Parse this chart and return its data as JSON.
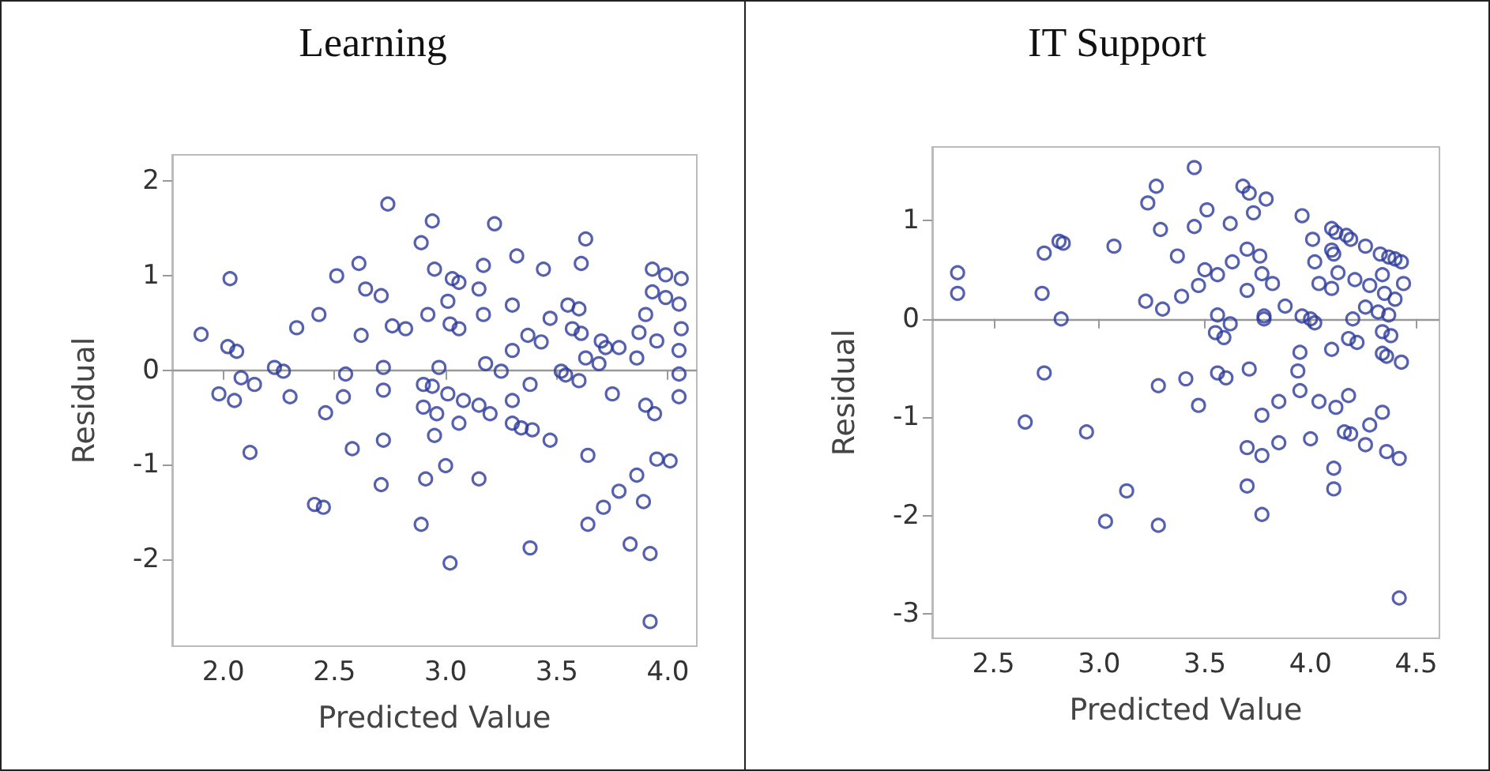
{
  "chart_data": [
    {
      "type": "scatter",
      "title": "Learning",
      "xlabel": "Predicted Value",
      "ylabel": "Residual",
      "marker": "circle",
      "grid": false,
      "xlim": [
        1.77,
        4.13
      ],
      "xticks": [
        {
          "value": 2,
          "label": "2.0"
        },
        2.5,
        {
          "value": 3,
          "label": "3.0"
        },
        3.5,
        {
          "value": 4,
          "label": "4.0"
        }
      ],
      "ylim": [
        -2.92,
        2.28
      ],
      "yticks": [
        -2,
        -1,
        0,
        1,
        2
      ],
      "ref_lines": [
        {
          "axis": "y",
          "value": 0,
          "color": "#999999"
        }
      ],
      "series": [
        {
          "color": "#2b3a9a",
          "x": [
            1.9,
            2.03,
            2.02,
            2.06,
            1.98,
            2.05,
            2.08,
            2.14,
            2.12,
            2.23,
            2.27,
            2.3,
            2.33,
            2.43,
            2.46,
            2.41,
            2.45,
            2.51,
            2.55,
            2.54,
            2.61,
            2.62,
            2.58,
            2.64,
            2.71,
            2.74,
            2.72,
            2.72,
            2.72,
            2.71,
            2.76,
            2.82,
            2.89,
            2.94,
            2.95,
            2.92,
            2.97,
            2.9,
            2.94,
            2.9,
            2.96,
            2.95,
            2.91,
            2.89,
            3.0,
            3.02,
            3.01,
            3.03,
            3.06,
            3.02,
            3.06,
            3.01,
            3.08,
            3.06,
            3.17,
            3.15,
            3.17,
            3.22,
            3.18,
            3.15,
            3.2,
            3.15,
            3.25,
            3.32,
            3.3,
            3.3,
            3.3,
            3.3,
            3.34,
            3.39,
            3.38,
            3.37,
            3.43,
            3.44,
            3.47,
            3.38,
            3.47,
            3.52,
            3.54,
            3.55,
            3.57,
            3.6,
            3.61,
            3.63,
            3.61,
            3.63,
            3.69,
            3.6,
            3.7,
            3.72,
            3.78,
            3.75,
            3.64,
            3.64,
            3.71,
            3.78,
            3.86,
            3.83,
            3.86,
            3.87,
            3.9,
            3.95,
            3.93,
            3.93,
            3.9,
            3.94,
            3.95,
            3.89,
            3.92,
            3.92,
            3.99,
            3.99,
            4.01,
            4.06,
            4.05,
            4.06,
            4.05,
            4.05,
            4.05
          ],
          "values": [
            0.38,
            0.97,
            0.25,
            0.2,
            -0.25,
            -0.32,
            -0.08,
            -0.15,
            -0.87,
            0.03,
            -0.01,
            -0.28,
            0.45,
            0.59,
            -0.45,
            -1.42,
            -1.45,
            1.0,
            -0.04,
            -0.28,
            1.13,
            0.37,
            -0.83,
            0.86,
            0.79,
            1.76,
            0.03,
            -0.21,
            -0.74,
            -1.21,
            0.47,
            0.44,
            1.35,
            1.58,
            1.07,
            0.59,
            0.03,
            -0.15,
            -0.17,
            -0.39,
            -0.46,
            -0.69,
            -1.15,
            -1.63,
            -1.01,
            -2.04,
            0.73,
            0.97,
            0.93,
            0.49,
            0.44,
            -0.25,
            -0.32,
            -0.56,
            1.11,
            0.86,
            0.59,
            1.55,
            0.07,
            -0.37,
            -0.46,
            -1.15,
            -0.01,
            1.21,
            0.69,
            0.21,
            -0.32,
            -0.56,
            -0.61,
            -0.63,
            -0.15,
            0.37,
            0.3,
            1.07,
            -0.74,
            -1.88,
            0.55,
            -0.01,
            -0.05,
            0.69,
            0.44,
            0.65,
            1.13,
            1.39,
            0.39,
            0.13,
            0.07,
            -0.11,
            0.31,
            0.24,
            0.24,
            -0.25,
            -0.9,
            -1.63,
            -1.45,
            -1.28,
            -1.11,
            -1.84,
            0.13,
            0.4,
            0.59,
            0.31,
            1.07,
            0.83,
            -0.37,
            -0.46,
            -0.94,
            -1.39,
            -1.94,
            -2.66,
            1.01,
            0.77,
            -0.96,
            0.97,
            0.7,
            0.44,
            0.21,
            -0.04,
            -0.28
          ]
        }
      ]
    },
    {
      "type": "scatter",
      "title": "IT Support",
      "xlabel": "Predicted Value",
      "ylabel": "Residual",
      "marker": "circle",
      "grid": false,
      "xlim": [
        2.21,
        4.61
      ],
      "xticks": [
        2.5,
        {
          "value": 3,
          "label": "3.0"
        },
        3.5,
        {
          "value": 4,
          "label": "4.0"
        },
        4.5
      ],
      "ylim": [
        -3.25,
        1.75
      ],
      "yticks": [
        -3,
        -2,
        -1,
        0,
        1
      ],
      "ref_lines": [
        {
          "axis": "y",
          "value": 0,
          "color": "#999999"
        }
      ],
      "series": [
        {
          "color": "#2b3a9a",
          "x": [
            2.33,
            2.33,
            2.74,
            2.73,
            2.81,
            2.83,
            2.82,
            2.74,
            2.65,
            2.94,
            3.07,
            3.13,
            3.03,
            3.28,
            3.23,
            3.27,
            3.29,
            3.22,
            3.3,
            3.28,
            3.37,
            3.39,
            3.41,
            3.47,
            3.45,
            3.45,
            3.51,
            3.47,
            3.5,
            3.56,
            3.62,
            3.63,
            3.56,
            3.55,
            3.59,
            3.62,
            3.56,
            3.6,
            3.68,
            3.71,
            3.73,
            3.79,
            3.7,
            3.76,
            3.7,
            3.77,
            3.82,
            3.78,
            3.78,
            3.71,
            3.7,
            3.7,
            3.77,
            3.77,
            3.77,
            3.85,
            3.85,
            3.88,
            3.96,
            3.96,
            4.0,
            4.02,
            3.95,
            3.94,
            3.95,
            4.04,
            4.0,
            4.01,
            4.02,
            4.04,
            4.1,
            4.1,
            4.12,
            4.1,
            4.11,
            4.13,
            4.17,
            4.19,
            4.21,
            4.2,
            4.18,
            4.22,
            4.1,
            4.12,
            4.18,
            4.16,
            4.19,
            4.11,
            4.11,
            4.26,
            4.28,
            4.26,
            4.28,
            4.26,
            4.34,
            4.36,
            4.42,
            4.42,
            4.33,
            4.37,
            4.4,
            4.43,
            4.34,
            4.35,
            4.4,
            4.44,
            4.32,
            4.37,
            4.34,
            4.38,
            4.34,
            4.36,
            4.43
          ],
          "values": [
            0.47,
            0.26,
            0.67,
            0.26,
            0.79,
            0.77,
            0.0,
            -0.55,
            -1.05,
            -1.15,
            0.74,
            -1.75,
            -2.06,
            -2.1,
            1.18,
            1.35,
            0.91,
            0.18,
            0.1,
            -0.68,
            0.64,
            0.23,
            -0.61,
            -0.88,
            1.54,
            0.94,
            1.11,
            0.34,
            0.5,
            0.45,
            0.97,
            0.58,
            0.04,
            -0.14,
            -0.19,
            -0.05,
            -0.55,
            -0.6,
            1.35,
            1.28,
            1.08,
            1.22,
            0.71,
            0.64,
            0.29,
            0.46,
            0.36,
            0.03,
            0.0,
            -0.51,
            -1.31,
            -1.7,
            -1.39,
            -0.98,
            -1.99,
            -0.84,
            -1.26,
            0.13,
            1.05,
            0.03,
            0.0,
            -0.04,
            -0.34,
            -0.53,
            -0.73,
            -0.84,
            -1.22,
            0.81,
            0.58,
            0.36,
            0.31,
            0.92,
            0.88,
            0.7,
            0.66,
            0.47,
            0.85,
            0.81,
            0.4,
            0.0,
            -0.2,
            -0.24,
            -0.31,
            -0.9,
            -0.78,
            -1.15,
            -1.17,
            -1.52,
            -1.73,
            0.74,
            0.34,
            0.12,
            -1.08,
            -1.28,
            -0.95,
            -1.35,
            -1.42,
            -2.84,
            0.66,
            0.63,
            0.61,
            0.58,
            0.45,
            0.26,
            0.2,
            0.36,
            0.07,
            0.04,
            -0.13,
            -0.17,
            -0.35,
            -0.38,
            -0.44
          ]
        }
      ]
    }
  ]
}
